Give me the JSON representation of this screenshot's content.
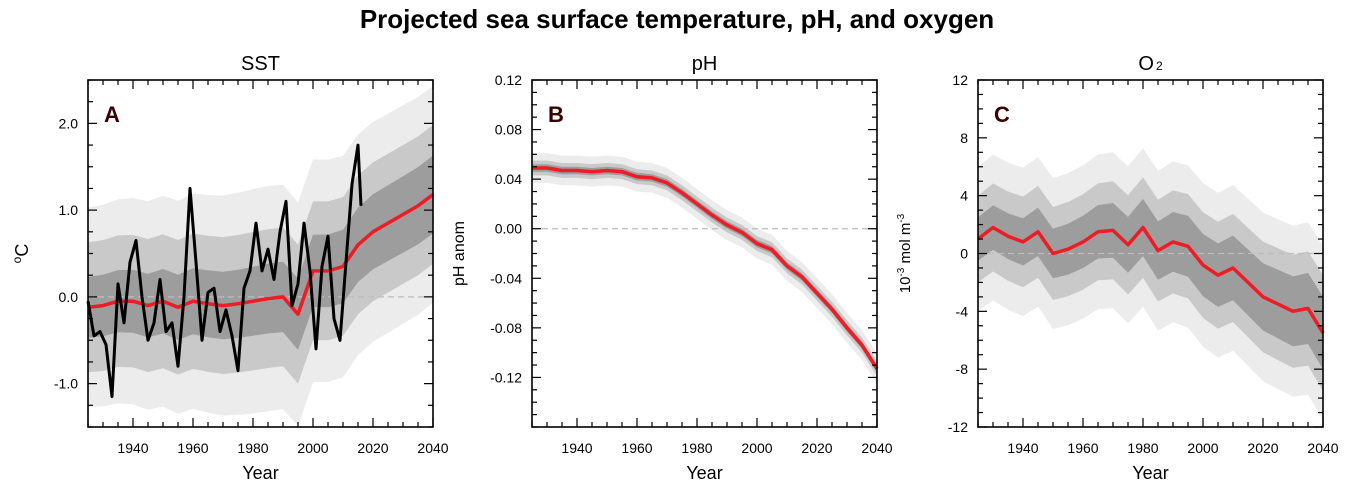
{
  "figure": {
    "title": "Projected sea surface temperature, pH, and oxygen"
  },
  "colors": {
    "ensemble_mean": "#ee1c25",
    "observations": "#000000",
    "band_outer": "#ececec",
    "band_mid": "#c9c9c9",
    "band_inner": "#9d9d9d"
  },
  "chart_data": [
    {
      "type": "line",
      "panel_letter": "A",
      "title": "SST",
      "xlabel": "Year",
      "ylabel": "oC",
      "ylabel_base": "o",
      "ylabel_unit": "C",
      "xlim": [
        1925,
        2040
      ],
      "ylim": [
        -1.5,
        2.5
      ],
      "xticks": [
        1940,
        1960,
        1980,
        2000,
        2020,
        2040
      ],
      "yticks": [
        -1.0,
        0.0,
        1.0,
        2.0
      ],
      "ytick_labels": [
        "-1.0",
        "0.0",
        "1.0",
        "2.0"
      ],
      "mean_x": [
        1925,
        1930,
        1935,
        1940,
        1945,
        1950,
        1955,
        1960,
        1965,
        1970,
        1975,
        1980,
        1985,
        1990,
        1995,
        2000,
        2005,
        2010,
        2015,
        2020,
        2025,
        2030,
        2035,
        2040
      ],
      "mean_y": [
        -0.12,
        -0.1,
        -0.05,
        -0.05,
        -0.1,
        -0.05,
        -0.12,
        -0.05,
        -0.08,
        -0.1,
        -0.08,
        -0.05,
        -0.02,
        0.0,
        -0.2,
        0.3,
        0.3,
        0.35,
        0.6,
        0.75,
        0.85,
        0.95,
        1.05,
        1.18
      ],
      "obs_x": [
        1925,
        1927,
        1929,
        1931,
        1933,
        1935,
        1937,
        1939,
        1941,
        1943,
        1945,
        1947,
        1949,
        1951,
        1953,
        1955,
        1957,
        1959,
        1961,
        1963,
        1965,
        1967,
        1969,
        1971,
        1973,
        1975,
        1977,
        1979,
        1981,
        1983,
        1985,
        1987,
        1989,
        1991,
        1993,
        1995,
        1997,
        1999,
        2001,
        2003,
        2005,
        2007,
        2009,
        2011,
        2013,
        2015,
        2016
      ],
      "obs_y": [
        -0.05,
        -0.45,
        -0.4,
        -0.55,
        -1.15,
        0.15,
        -0.3,
        0.4,
        0.65,
        0.0,
        -0.5,
        -0.3,
        0.2,
        -0.4,
        -0.3,
        -0.8,
        0.0,
        1.25,
        0.4,
        -0.5,
        0.05,
        0.1,
        -0.4,
        -0.15,
        -0.45,
        -0.85,
        0.1,
        0.3,
        0.85,
        0.3,
        0.55,
        0.2,
        0.75,
        1.1,
        -0.1,
        0.15,
        0.85,
        0.3,
        -0.6,
        0.35,
        0.7,
        -0.25,
        -0.5,
        0.4,
        1.3,
        1.75,
        1.05
      ],
      "band_outer": [
        1.15,
        1.3,
        1.25
      ],
      "band_mid": [
        0.75,
        0.8,
        0.8
      ],
      "band_inner": [
        0.35,
        0.4,
        0.45
      ],
      "reference_line": 0.0
    },
    {
      "type": "line",
      "panel_letter": "B",
      "title": "pH",
      "xlabel": "Year",
      "ylabel": "pH anom",
      "xlim": [
        1925,
        2040
      ],
      "ylim": [
        -0.16,
        0.12
      ],
      "xticks": [
        1940,
        1960,
        1980,
        2000,
        2020,
        2040
      ],
      "yticks": [
        -0.12,
        -0.08,
        -0.04,
        0.0,
        0.04,
        0.08,
        0.12
      ],
      "ytick_labels": [
        "-0.12",
        "-0.08",
        "-0.04",
        "0.00",
        "0.04",
        "0.08",
        "0.12"
      ],
      "mean_x": [
        1925,
        1930,
        1935,
        1940,
        1945,
        1950,
        1955,
        1960,
        1965,
        1970,
        1975,
        1980,
        1985,
        1990,
        1995,
        2000,
        2005,
        2010,
        2015,
        2020,
        2025,
        2030,
        2035,
        2040
      ],
      "mean_y": [
        0.049,
        0.049,
        0.047,
        0.047,
        0.046,
        0.047,
        0.046,
        0.042,
        0.041,
        0.037,
        0.029,
        0.02,
        0.011,
        0.003,
        -0.003,
        -0.012,
        -0.017,
        -0.03,
        -0.039,
        -0.052,
        -0.065,
        -0.08,
        -0.094,
        -0.113
      ],
      "band_outer": [
        0.012,
        0.012,
        0.012
      ],
      "band_mid": [
        0.006,
        0.006,
        0.006
      ],
      "band_inner": [
        0.003,
        0.003,
        0.003
      ],
      "reference_line": 0.0
    },
    {
      "type": "line",
      "panel_letter": "C",
      "title": "O2",
      "title_base": "O",
      "title_sub": "2",
      "xlabel": "Year",
      "ylabel": "10-3 mol m-3",
      "ylabel_parts": [
        "10",
        "-3",
        " mol m",
        "-3"
      ],
      "xlim": [
        1925,
        2040
      ],
      "ylim": [
        -12,
        12
      ],
      "xticks": [
        1940,
        1960,
        1980,
        2000,
        2020,
        2040
      ],
      "yticks": [
        -12,
        -8,
        -4,
        0,
        4,
        8,
        12
      ],
      "ytick_labels": [
        "-12",
        "-8",
        "-4",
        "0",
        "4",
        "8",
        "12"
      ],
      "mean_x": [
        1925,
        1930,
        1935,
        1940,
        1945,
        1950,
        1955,
        1960,
        1965,
        1970,
        1975,
        1980,
        1985,
        1990,
        1995,
        2000,
        2005,
        2010,
        2015,
        2020,
        2025,
        2030,
        2035,
        2040
      ],
      "mean_y": [
        1.0,
        1.8,
        1.2,
        0.8,
        1.5,
        0.0,
        0.3,
        0.8,
        1.5,
        1.6,
        0.6,
        1.8,
        0.2,
        0.8,
        0.5,
        -0.8,
        -1.5,
        -1.0,
        -2.0,
        -3.0,
        -3.5,
        -4.0,
        -3.8,
        -5.5
      ],
      "band_outer": [
        5.0,
        5.5,
        6.0
      ],
      "band_mid": [
        3.0,
        3.5,
        4.0
      ],
      "band_inner": [
        1.5,
        2.0,
        2.5
      ],
      "reference_line": 0.0
    }
  ]
}
